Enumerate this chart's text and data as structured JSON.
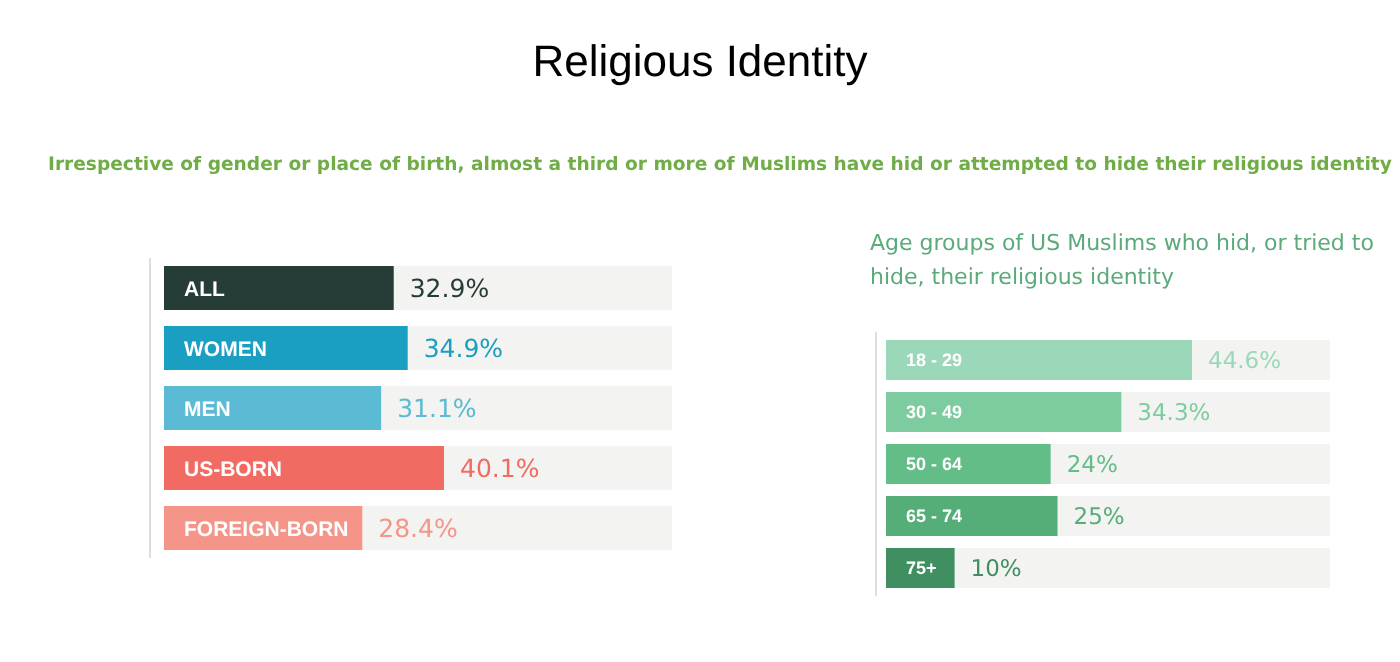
{
  "chart_data": [
    {
      "type": "other",
      "title": "Religious Identity",
      "subtitle": "Irrespective of gender or place of birth, almost a third or more of Muslims have hid or attempted to hide their religious identity"
    },
    {
      "type": "bar",
      "orientation": "horizontal",
      "categories": [
        "ALL",
        "WOMEN",
        "MEN",
        "US-BORN",
        "FOREIGN-BORN"
      ],
      "values": [
        32.9,
        34.9,
        31.1,
        40.1,
        28.4
      ],
      "colors": [
        "#263d37",
        "#1a9fc3",
        "#5bbad4",
        "#f26b63",
        "#f5958a"
      ],
      "value_labels": [
        "32.9%",
        "34.9%",
        "31.1%",
        "40.1%",
        "28.4%"
      ]
    },
    {
      "type": "bar",
      "orientation": "horizontal",
      "title": "Age groups of US Muslims who hid, or tried to hide, their religious identity",
      "categories": [
        "18 - 29",
        "30 - 49",
        "50 - 64",
        "65 - 74",
        "75+"
      ],
      "values": [
        44.6,
        34.3,
        24,
        25,
        10
      ],
      "colors": [
        "#9ad8b9",
        "#7ccc9f",
        "#63bd87",
        "#55ad78",
        "#3f8f60"
      ],
      "value_labels": [
        "44.6%",
        "34.3%",
        "24%",
        "25%",
        "10%"
      ]
    }
  ]
}
